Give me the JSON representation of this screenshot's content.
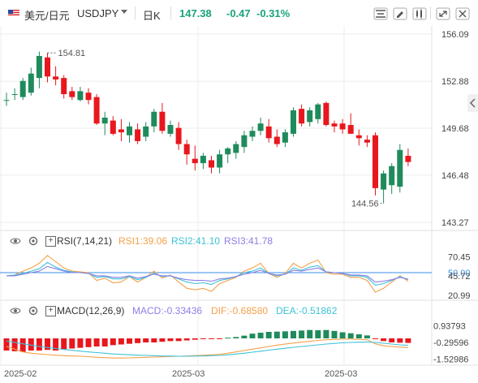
{
  "header": {
    "symbol": "美元/日元",
    "code": "USDJPY",
    "dropdown_icon": "caret-down-icon",
    "period": "日K",
    "price": "147.38",
    "change": "-0.47",
    "change_pct": "-0.31%",
    "change_color": "#19a37b",
    "tool_icons": [
      "indicator-icon",
      "draw-pen-icon",
      "chart-style-icon",
      "expand-icon",
      "close-icon"
    ]
  },
  "colors": {
    "up": "#1f8b5c",
    "down": "#e8171e",
    "rsi1": "#f5a04a",
    "rsi2": "#3cc2d8",
    "rsi3": "#8c7ee6",
    "macd": "#8c7ee6",
    "dif": "#f5a04a",
    "dea": "#3cc2d8",
    "grid": "#eeeeee"
  },
  "chart_data": [
    {
      "type": "candlestick",
      "title": "USDJPY 日K",
      "x_labels": [
        "2025-02",
        "2025-03",
        "2025-03"
      ],
      "y_ticks": [
        156.09,
        152.88,
        149.68,
        146.48,
        143.27
      ],
      "ylim": [
        143.27,
        156.09
      ],
      "annotations": [
        {
          "label": "154.81",
          "value": 154.81,
          "kind": "high"
        },
        {
          "label": "144.56",
          "value": 144.56,
          "kind": "low"
        }
      ],
      "ohlc": [
        [
          151.6,
          152.1,
          151.2,
          151.6
        ],
        [
          152.0,
          152.4,
          151.6,
          152.0
        ],
        [
          151.8,
          153.1,
          151.6,
          152.9
        ],
        [
          152.1,
          153.8,
          151.9,
          153.4
        ],
        [
          153.1,
          154.9,
          152.4,
          154.6
        ],
        [
          154.5,
          154.81,
          152.8,
          153.2
        ],
        [
          153.2,
          153.9,
          152.6,
          153.0
        ],
        [
          153.1,
          153.3,
          151.7,
          152.0
        ],
        [
          152.2,
          152.5,
          151.6,
          151.8
        ],
        [
          151.6,
          152.5,
          151.5,
          152.2
        ],
        [
          152.1,
          152.4,
          151.3,
          151.6
        ],
        [
          151.8,
          152.0,
          149.9,
          150.0
        ],
        [
          150.0,
          150.8,
          149.2,
          150.4
        ],
        [
          150.2,
          150.5,
          149.2,
          149.3
        ],
        [
          149.6,
          150.3,
          148.8,
          149.4
        ],
        [
          149.2,
          150.1,
          148.7,
          149.8
        ],
        [
          149.6,
          150.0,
          148.6,
          148.8
        ],
        [
          149.1,
          150.1,
          148.8,
          149.8
        ],
        [
          149.8,
          151.0,
          149.4,
          150.8
        ],
        [
          150.8,
          151.4,
          149.3,
          149.5
        ],
        [
          149.3,
          150.2,
          149.1,
          149.9
        ],
        [
          149.7,
          150.1,
          148.2,
          148.6
        ],
        [
          148.6,
          148.9,
          147.2,
          147.9
        ],
        [
          147.6,
          148.5,
          146.8,
          147.3
        ],
        [
          147.3,
          148.0,
          146.9,
          147.8
        ],
        [
          147.5,
          147.8,
          146.6,
          147.0
        ],
        [
          147.0,
          148.2,
          146.6,
          147.9
        ],
        [
          147.9,
          148.4,
          147.3,
          148.3
        ],
        [
          148.0,
          148.8,
          147.6,
          148.6
        ],
        [
          148.4,
          149.5,
          148.0,
          149.2
        ],
        [
          149.1,
          149.8,
          148.8,
          149.5
        ],
        [
          149.5,
          150.4,
          149.2,
          150.0
        ],
        [
          149.8,
          150.3,
          148.7,
          149.0
        ],
        [
          149.1,
          149.6,
          148.4,
          148.6
        ],
        [
          148.7,
          149.6,
          148.4,
          149.4
        ],
        [
          149.3,
          151.1,
          149.1,
          150.9
        ],
        [
          151.0,
          151.3,
          149.8,
          150.0
        ],
        [
          150.1,
          151.1,
          149.8,
          150.9
        ],
        [
          150.3,
          151.4,
          150.0,
          151.3
        ],
        [
          151.4,
          151.5,
          149.8,
          149.9
        ],
        [
          150.0,
          150.2,
          149.4,
          149.8
        ],
        [
          150.0,
          150.3,
          149.3,
          149.6
        ],
        [
          149.9,
          150.7,
          149.3,
          149.3
        ],
        [
          149.2,
          149.6,
          148.5,
          149.0
        ],
        [
          148.9,
          149.2,
          148.4,
          148.7
        ],
        [
          149.2,
          149.4,
          145.1,
          145.6
        ],
        [
          145.5,
          146.8,
          144.56,
          146.6
        ],
        [
          145.8,
          147.3,
          145.2,
          147.1
        ],
        [
          145.7,
          148.6,
          145.3,
          148.2
        ],
        [
          147.8,
          148.3,
          147.1,
          147.38
        ]
      ]
    },
    {
      "type": "line",
      "title": "RSI(7,14,21)",
      "legend": [
        {
          "label": "RSI(7,14,21)",
          "color": "#333333"
        },
        {
          "label": "RSI1:39.06",
          "color": "#f5a04a"
        },
        {
          "label": "RSI2:41.10",
          "color": "#3cc2d8"
        },
        {
          "label": "RSI3:41.78",
          "color": "#8c7ee6"
        }
      ],
      "y_ticks": [
        70.45,
        50.0,
        45.72,
        20.99
      ],
      "ylim": [
        20.99,
        79.0
      ],
      "reference_line": 50.0,
      "series": [
        {
          "values": [
            46,
            47,
            52,
            56,
            62,
            72,
            64,
            56,
            52,
            51,
            50,
            40,
            43,
            37,
            38,
            45,
            38,
            44,
            52,
            43,
            47,
            38,
            30,
            28,
            30,
            26,
            36,
            40,
            44,
            52,
            56,
            62,
            49,
            44,
            49,
            62,
            56,
            62,
            66,
            50,
            48,
            48,
            44,
            44,
            40,
            25,
            30,
            38,
            46,
            39.06
          ]
        },
        {
          "values": [
            46,
            47,
            49,
            52,
            55,
            63,
            57,
            53,
            51,
            50,
            49,
            44,
            45,
            42,
            42,
            45,
            41,
            44,
            49,
            45,
            46,
            42,
            38,
            36,
            37,
            35,
            40,
            42,
            45,
            50,
            52,
            56,
            49,
            46,
            48,
            56,
            53,
            57,
            59,
            51,
            50,
            49,
            46,
            46,
            44,
            34,
            36,
            40,
            45,
            41.1
          ]
        },
        {
          "values": [
            46,
            46,
            48,
            50,
            52,
            58,
            55,
            52,
            50,
            50,
            49,
            46,
            46,
            44,
            44,
            46,
            43,
            45,
            48,
            46,
            46,
            43,
            41,
            40,
            40,
            39,
            42,
            43,
            45,
            48,
            50,
            53,
            49,
            47,
            48,
            53,
            52,
            54,
            56,
            51,
            50,
            49,
            47,
            47,
            46,
            38,
            39,
            41,
            44,
            41.78
          ]
        }
      ]
    },
    {
      "type": "bar",
      "title": "MACD(12,26,9)",
      "legend": [
        {
          "label": "MACD(12,26,9)",
          "color": "#333333"
        },
        {
          "label": "MACD:-0.33436",
          "color": "#8c7ee6"
        },
        {
          "label": "DIF:-0.68580",
          "color": "#f5a04a"
        },
        {
          "label": "DEA:-0.51862",
          "color": "#3cc2d8"
        }
      ],
      "y_ticks": [
        0.93793,
        -0.29596,
        -1.52986
      ],
      "ylim": [
        -1.62,
        1.02
      ],
      "histogram": [
        -0.9,
        -0.95,
        -1.0,
        -0.9,
        -0.9,
        -0.85,
        -0.9,
        -0.8,
        -0.75,
        -0.7,
        -0.65,
        -0.6,
        -0.6,
        -0.5,
        -0.45,
        -0.4,
        -0.35,
        -0.3,
        -0.3,
        -0.25,
        -0.2,
        -0.2,
        -0.15,
        -0.1,
        -0.05,
        -0.05,
        -0.03,
        0.05,
        0.1,
        0.2,
        0.35,
        0.42,
        0.48,
        0.5,
        0.52,
        0.55,
        0.58,
        0.62,
        0.6,
        0.62,
        0.55,
        0.45,
        0.38,
        0.3,
        0.22,
        -0.05,
        -0.2,
        -0.3,
        -0.32,
        -0.33436
      ],
      "dif": [
        -0.6,
        -0.8,
        -1.0,
        -1.1,
        -1.15,
        -1.2,
        -1.25,
        -1.28,
        -1.3,
        -1.32,
        -1.35,
        -1.4,
        -1.42,
        -1.45,
        -1.45,
        -1.44,
        -1.42,
        -1.4,
        -1.38,
        -1.36,
        -1.34,
        -1.32,
        -1.3,
        -1.28,
        -1.25,
        -1.22,
        -1.18,
        -1.1,
        -1.0,
        -0.9,
        -0.8,
        -0.7,
        -0.6,
        -0.5,
        -0.42,
        -0.35,
        -0.28,
        -0.22,
        -0.15,
        -0.1,
        -0.08,
        -0.05,
        -0.05,
        -0.08,
        -0.1,
        -0.4,
        -0.55,
        -0.6,
        -0.65,
        -0.6858
      ],
      "dea": [
        -0.2,
        -0.3,
        -0.4,
        -0.5,
        -0.6,
        -0.68,
        -0.75,
        -0.82,
        -0.88,
        -0.94,
        -1.0,
        -1.05,
        -1.1,
        -1.15,
        -1.18,
        -1.21,
        -1.24,
        -1.26,
        -1.28,
        -1.3,
        -1.31,
        -1.32,
        -1.32,
        -1.31,
        -1.3,
        -1.28,
        -1.26,
        -1.22,
        -1.16,
        -1.1,
        -1.02,
        -0.95,
        -0.87,
        -0.8,
        -0.73,
        -0.66,
        -0.6,
        -0.54,
        -0.48,
        -0.42,
        -0.37,
        -0.33,
        -0.3,
        -0.28,
        -0.27,
        -0.3,
        -0.36,
        -0.42,
        -0.48,
        -0.51862
      ]
    }
  ]
}
